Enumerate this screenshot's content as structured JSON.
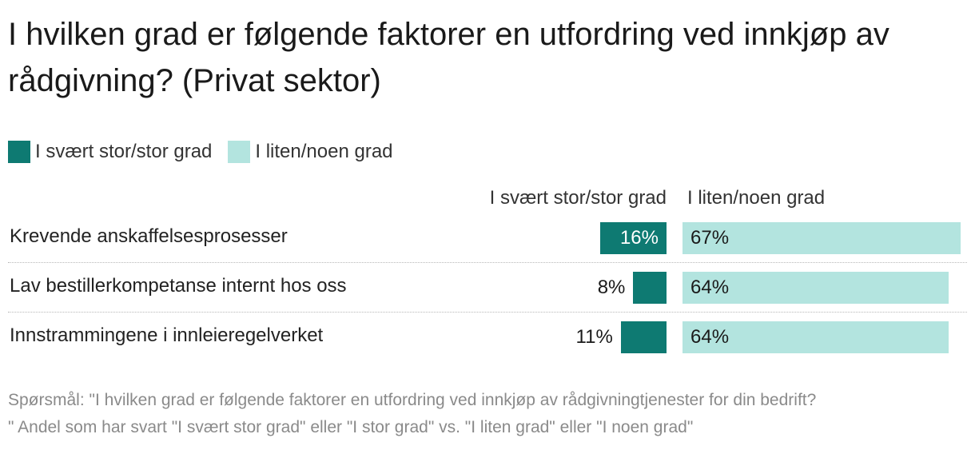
{
  "title": "I hvilken grad er følgende faktorer en utfordring ved innkjøp av rådgivning? (Privat sektor)",
  "legend": [
    {
      "label": "I svært stor/stor grad",
      "color": "#0e7a72"
    },
    {
      "label": "I liten/noen grad",
      "color": "#b3e4df"
    }
  ],
  "chart_data": {
    "type": "bar",
    "orientation": "horizontal",
    "categories": [
      "Krevende anskaffelsesprosesser",
      "Lav bestillerkompetanse internt hos oss",
      "Innstrammingene i innleieregelverket"
    ],
    "series": [
      {
        "name": "I svært stor/stor grad",
        "values": [
          16,
          8,
          11
        ],
        "labels": [
          "16%",
          "8%",
          "11%"
        ],
        "color": "#0e7a72"
      },
      {
        "name": "I liten/noen grad",
        "values": [
          67,
          64,
          64
        ],
        "labels": [
          "67%",
          "64%",
          "64%"
        ],
        "color": "#b3e4df"
      }
    ],
    "unit": "%",
    "legend_position": "top-left"
  },
  "footnote": {
    "line1": "Spørsmål: \"I hvilken grad er følgende faktorer en utfordring ved innkjøp av rådgivningtjenester for din bedrift?",
    "line2": "\" Andel som har svart \"I svært stor grad\" eller \"I stor grad\" vs. \"I liten grad\" eller \"I noen grad\""
  }
}
